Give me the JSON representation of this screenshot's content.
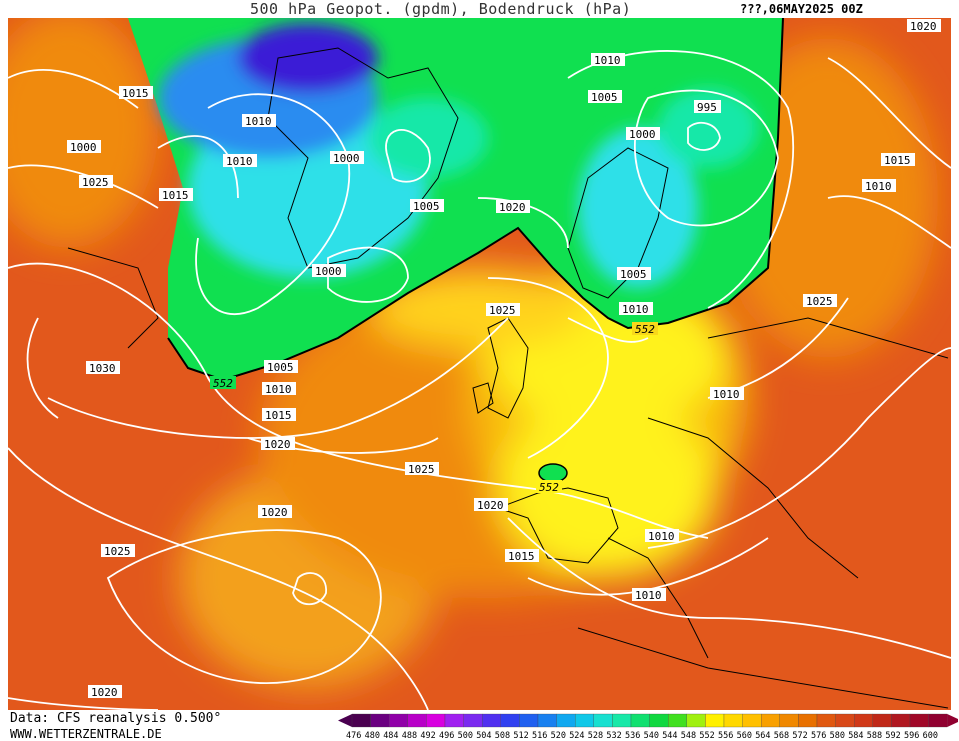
{
  "header": {
    "title": "500 hPa Geopot. (gpdm), Bodendruck (hPa)",
    "date": "???,06MAY2025 00Z"
  },
  "footer": {
    "source": "Data: CFS reanalysis 0.500°",
    "website": "WWW.WETTERZENTRALE.DE"
  },
  "colors": {
    "very_low": "#3a1fd6",
    "low_blue": "#2a8cf0",
    "cyan": "#2ee0e8",
    "green": "#10e050",
    "yellow": "#fff21a",
    "orange": "#f08a10",
    "red_orange": "#e04a1a",
    "isobar": "#ffffff"
  },
  "scale": {
    "values": [
      "476",
      "480",
      "484",
      "488",
      "492",
      "496",
      "500",
      "504",
      "508",
      "512",
      "516",
      "520",
      "524",
      "528",
      "532",
      "536",
      "540",
      "544",
      "548",
      "552",
      "556",
      "560",
      "564",
      "568",
      "572",
      "576",
      "580",
      "584",
      "588",
      "592",
      "596",
      "600"
    ],
    "colors": [
      "#4a0050",
      "#6a0080",
      "#9000a8",
      "#b800c8",
      "#d800e0",
      "#a020f0",
      "#7a2af0",
      "#5030f0",
      "#3040f0",
      "#2060f0",
      "#1880f0",
      "#10a8f0",
      "#10c8e8",
      "#18e0d0",
      "#18e8a8",
      "#10e070",
      "#10d840",
      "#40e020",
      "#a0f010",
      "#fff000",
      "#ffd800",
      "#ffc000",
      "#f8a000",
      "#f08800",
      "#e87000",
      "#e05810",
      "#d84818",
      "#d03818",
      "#c02818",
      "#b01820",
      "#a00828",
      "#900030"
    ]
  },
  "isobar_labels": [
    "1020",
    "1015",
    "1010",
    "1010",
    "1010",
    "1005",
    "1000",
    "995",
    "1000",
    "1000",
    "1005",
    "1020",
    "1005",
    "1010",
    "1015",
    "1010",
    "1025",
    "1000",
    "1015",
    "1025",
    "1030",
    "1005",
    "1010",
    "1015",
    "1020",
    "1025",
    "1010",
    "1020",
    "1025",
    "1020",
    "1015",
    "1010",
    "1010",
    "1020",
    "1025"
  ],
  "contour_labels": [
    "552",
    "552",
    "552"
  ]
}
